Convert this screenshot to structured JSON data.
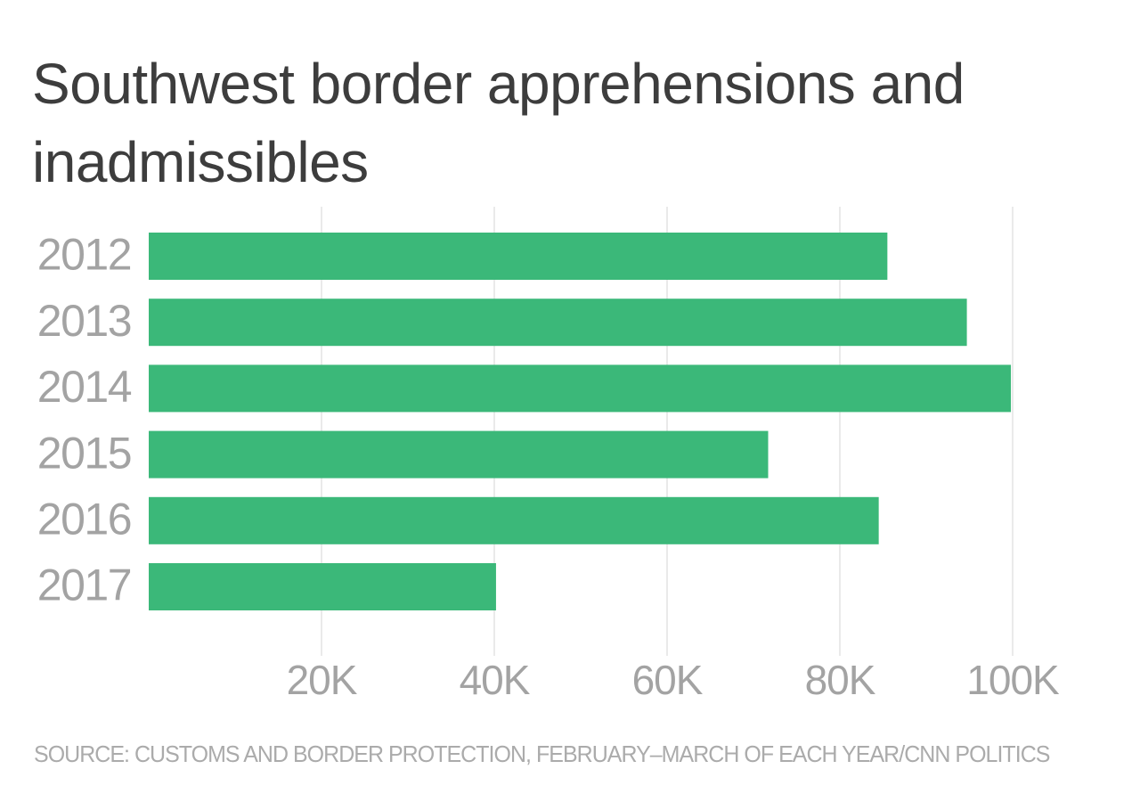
{
  "colors": {
    "bar": "#3bb879",
    "grid": "#e3e3e3",
    "tick_text": "#a3a3a3",
    "title_text": "#3d3d3d",
    "source_text": "#ababab"
  },
  "chart_data": {
    "type": "bar",
    "orientation": "horizontal",
    "title": "Southwest border apprehensions and inadmissibles",
    "categories": [
      "2012",
      "2013",
      "2014",
      "2015",
      "2016",
      "2017"
    ],
    "values": [
      85500,
      94700,
      99800,
      71700,
      84500,
      40200
    ],
    "xlim": [
      0,
      100000
    ],
    "x_ticks": [
      20000,
      40000,
      60000,
      80000,
      100000
    ],
    "x_tick_labels": [
      "20K",
      "40K",
      "60K",
      "80K",
      "100K"
    ],
    "xlabel": "",
    "ylabel": "",
    "grid": "vertical",
    "legend": "none",
    "source": "SOURCE: CUSTOMS AND BORDER PROTECTION, FEBRUARY–MARCH OF EACH YEAR/CNN POLITICS"
  }
}
